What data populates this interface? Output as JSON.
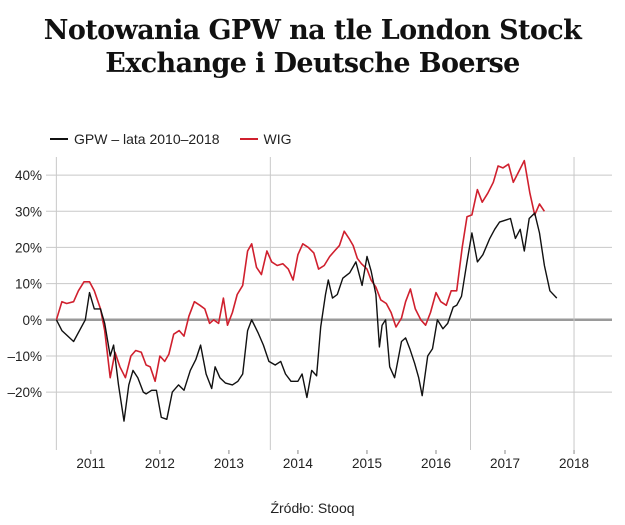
{
  "title_lines": [
    "Notowania GPW na tle London Stock",
    "Exchange i Deutsche Boerse"
  ],
  "source": "Źródło: Stooq",
  "colors": {
    "gpw": "#111111",
    "wig": "#d0202e",
    "grid": "#c8c8c8",
    "zero": "#9a9a9a"
  },
  "chart_data": {
    "type": "line",
    "title": "Notowania GPW na tle London Stock Exchange i Deutsche Boerse",
    "xlabel": "",
    "ylabel": "",
    "xlim": [
      2010.35,
      2018.55
    ],
    "ylim": [
      -36,
      45
    ],
    "y_ticks": [
      40,
      30,
      20,
      10,
      0,
      -10,
      -20
    ],
    "y_tick_labels": [
      "40%",
      "30%",
      "20%",
      "10%",
      "0%",
      "–10%",
      "–20%"
    ],
    "x_ticks": [
      2011,
      2012,
      2013,
      2014,
      2015,
      2016,
      2017,
      2018
    ],
    "x_tick_labels": [
      "2011",
      "2012",
      "2013",
      "2014",
      "2015",
      "2016",
      "2017",
      "2018"
    ],
    "x_gridlines": [
      2010.5,
      2013.6,
      2016.5,
      2018.0
    ],
    "grid": true,
    "legend_position": "top-left",
    "series": [
      {
        "name": "GPW – lata 2010–2018",
        "color": "#111111",
        "points": [
          [
            2010.5,
            0
          ],
          [
            2010.58,
            -3
          ],
          [
            2010.75,
            -6
          ],
          [
            2010.92,
            0
          ],
          [
            2010.98,
            7.5
          ],
          [
            2011.05,
            3
          ],
          [
            2011.14,
            3
          ],
          [
            2011.2,
            -1
          ],
          [
            2011.28,
            -10
          ],
          [
            2011.33,
            -7
          ],
          [
            2011.4,
            -18
          ],
          [
            2011.48,
            -28
          ],
          [
            2011.55,
            -18
          ],
          [
            2011.61,
            -14
          ],
          [
            2011.68,
            -16
          ],
          [
            2011.76,
            -20
          ],
          [
            2011.8,
            -20.5
          ],
          [
            2011.88,
            -19.5
          ],
          [
            2011.95,
            -19.5
          ],
          [
            2012.02,
            -27
          ],
          [
            2012.1,
            -27.5
          ],
          [
            2012.18,
            -20
          ],
          [
            2012.27,
            -18
          ],
          [
            2012.35,
            -19.5
          ],
          [
            2012.44,
            -14
          ],
          [
            2012.52,
            -11
          ],
          [
            2012.59,
            -7
          ],
          [
            2012.67,
            -15
          ],
          [
            2012.75,
            -19
          ],
          [
            2012.8,
            -13
          ],
          [
            2012.87,
            -16
          ],
          [
            2012.95,
            -17.5
          ],
          [
            2013.05,
            -18
          ],
          [
            2013.13,
            -17
          ],
          [
            2013.2,
            -15
          ],
          [
            2013.27,
            -3
          ],
          [
            2013.33,
            0
          ],
          [
            2013.42,
            -3.5
          ],
          [
            2013.5,
            -7
          ],
          [
            2013.58,
            -11.5
          ],
          [
            2013.67,
            -12.5
          ],
          [
            2013.75,
            -11.5
          ],
          [
            2013.82,
            -15
          ],
          [
            2013.9,
            -17
          ],
          [
            2014.0,
            -17
          ],
          [
            2014.06,
            -15
          ],
          [
            2014.13,
            -21.5
          ],
          [
            2014.2,
            -14
          ],
          [
            2014.27,
            -15.5
          ],
          [
            2014.33,
            -2
          ],
          [
            2014.4,
            7
          ],
          [
            2014.44,
            11
          ],
          [
            2014.5,
            6
          ],
          [
            2014.57,
            7
          ],
          [
            2014.65,
            11.5
          ],
          [
            2014.75,
            13
          ],
          [
            2014.84,
            16
          ],
          [
            2014.93,
            9.5
          ],
          [
            2015.0,
            17.5
          ],
          [
            2015.06,
            13.5
          ],
          [
            2015.13,
            7
          ],
          [
            2015.18,
            -7.5
          ],
          [
            2015.22,
            -1.5
          ],
          [
            2015.27,
            0
          ],
          [
            2015.33,
            -13
          ],
          [
            2015.4,
            -16
          ],
          [
            2015.5,
            -6
          ],
          [
            2015.56,
            -5
          ],
          [
            2015.62,
            -8
          ],
          [
            2015.69,
            -12
          ],
          [
            2015.75,
            -16
          ],
          [
            2015.8,
            -21
          ],
          [
            2015.88,
            -10
          ],
          [
            2015.95,
            -8
          ],
          [
            2016.02,
            0
          ],
          [
            2016.1,
            -2.5
          ],
          [
            2016.17,
            -1
          ],
          [
            2016.25,
            3.5
          ],
          [
            2016.3,
            4
          ],
          [
            2016.37,
            6.5
          ],
          [
            2016.45,
            16
          ],
          [
            2016.52,
            24
          ],
          [
            2016.6,
            16
          ],
          [
            2016.68,
            18
          ],
          [
            2016.78,
            22.5
          ],
          [
            2016.85,
            25
          ],
          [
            2016.92,
            27
          ],
          [
            2017.0,
            27.5
          ],
          [
            2017.08,
            28
          ],
          [
            2017.15,
            22.5
          ],
          [
            2017.22,
            25
          ],
          [
            2017.28,
            19
          ],
          [
            2017.35,
            28
          ],
          [
            2017.43,
            29.5
          ],
          [
            2017.5,
            24
          ],
          [
            2017.57,
            15
          ],
          [
            2017.65,
            8
          ],
          [
            2017.75,
            6
          ]
        ]
      },
      {
        "name": "WIG",
        "color": "#d0202e",
        "points": [
          [
            2010.5,
            0
          ],
          [
            2010.58,
            5
          ],
          [
            2010.65,
            4.5
          ],
          [
            2010.75,
            5
          ],
          [
            2010.82,
            8
          ],
          [
            2010.9,
            10.5
          ],
          [
            2010.98,
            10.5
          ],
          [
            2011.05,
            8
          ],
          [
            2011.14,
            3
          ],
          [
            2011.2,
            -3
          ],
          [
            2011.28,
            -16
          ],
          [
            2011.35,
            -9
          ],
          [
            2011.42,
            -13
          ],
          [
            2011.5,
            -16
          ],
          [
            2011.58,
            -10
          ],
          [
            2011.65,
            -8.5
          ],
          [
            2011.73,
            -9
          ],
          [
            2011.8,
            -12.5
          ],
          [
            2011.86,
            -13
          ],
          [
            2011.93,
            -17
          ],
          [
            2012.0,
            -10
          ],
          [
            2012.07,
            -11.5
          ],
          [
            2012.13,
            -9.5
          ],
          [
            2012.2,
            -4
          ],
          [
            2012.28,
            -3
          ],
          [
            2012.35,
            -4.5
          ],
          [
            2012.42,
            1
          ],
          [
            2012.5,
            5
          ],
          [
            2012.58,
            4
          ],
          [
            2012.65,
            3
          ],
          [
            2012.72,
            -1
          ],
          [
            2012.78,
            0
          ],
          [
            2012.85,
            -1
          ],
          [
            2012.92,
            6
          ],
          [
            2012.98,
            -1.5
          ],
          [
            2013.05,
            2
          ],
          [
            2013.12,
            7
          ],
          [
            2013.2,
            9.5
          ],
          [
            2013.27,
            19
          ],
          [
            2013.33,
            21
          ],
          [
            2013.4,
            14.5
          ],
          [
            2013.47,
            12.5
          ],
          [
            2013.55,
            19
          ],
          [
            2013.62,
            16
          ],
          [
            2013.7,
            15
          ],
          [
            2013.78,
            15.5
          ],
          [
            2013.86,
            14
          ],
          [
            2013.93,
            11
          ],
          [
            2014.0,
            18
          ],
          [
            2014.07,
            21
          ],
          [
            2014.15,
            20
          ],
          [
            2014.23,
            18.5
          ],
          [
            2014.3,
            14
          ],
          [
            2014.38,
            15
          ],
          [
            2014.46,
            17.5
          ],
          [
            2014.53,
            19
          ],
          [
            2014.6,
            20.5
          ],
          [
            2014.67,
            24.5
          ],
          [
            2014.74,
            22.5
          ],
          [
            2014.8,
            20.5
          ],
          [
            2014.86,
            17
          ],
          [
            2014.92,
            15.5
          ],
          [
            2015.0,
            14
          ],
          [
            2015.06,
            11
          ],
          [
            2015.13,
            9
          ],
          [
            2015.2,
            5.5
          ],
          [
            2015.28,
            4.5
          ],
          [
            2015.35,
            2
          ],
          [
            2015.42,
            -2
          ],
          [
            2015.5,
            0.5
          ],
          [
            2015.56,
            5
          ],
          [
            2015.63,
            8.5
          ],
          [
            2015.7,
            3
          ],
          [
            2015.78,
            0
          ],
          [
            2015.85,
            -1.5
          ],
          [
            2015.92,
            2
          ],
          [
            2016.0,
            7.5
          ],
          [
            2016.07,
            5
          ],
          [
            2016.15,
            4
          ],
          [
            2016.22,
            8
          ],
          [
            2016.3,
            8
          ],
          [
            2016.38,
            20
          ],
          [
            2016.45,
            28.5
          ],
          [
            2016.52,
            29
          ],
          [
            2016.6,
            36
          ],
          [
            2016.67,
            32.5
          ],
          [
            2016.75,
            35
          ],
          [
            2016.83,
            38
          ],
          [
            2016.9,
            42.5
          ],
          [
            2016.97,
            42
          ],
          [
            2017.05,
            43
          ],
          [
            2017.12,
            38
          ],
          [
            2017.2,
            41
          ],
          [
            2017.28,
            44
          ],
          [
            2017.36,
            35
          ],
          [
            2017.43,
            29
          ],
          [
            2017.5,
            32
          ],
          [
            2017.57,
            30
          ]
        ]
      }
    ]
  }
}
